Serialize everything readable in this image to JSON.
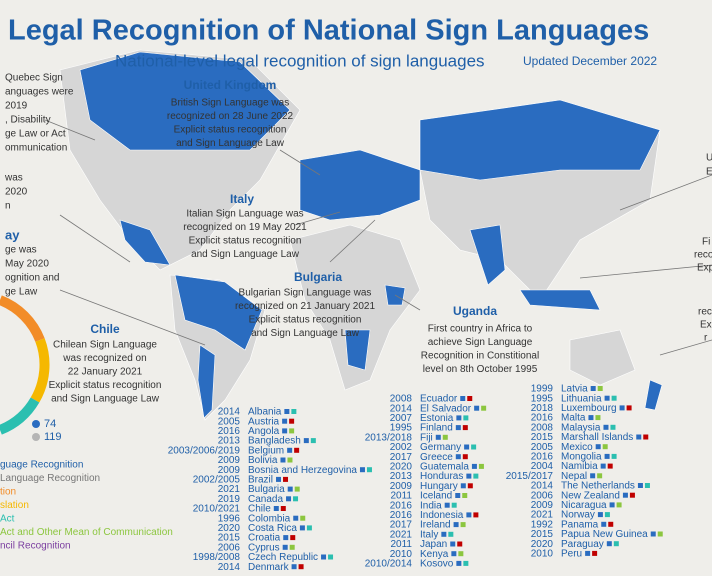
{
  "header": {
    "title": "Legal Recognition of National Sign Languages",
    "subtitle": "National-level legal recognition of sign languages",
    "updated": "Updated December 2022"
  },
  "callouts": [
    {
      "heading": "United Kingdom",
      "lines": [
        "British Sign Language was",
        "recognized on 28 June 2022",
        "Explicit status recognition",
        "and Sign Language Law"
      ]
    },
    {
      "heading": "Italy",
      "lines": [
        "Italian Sign Language was",
        "recognized on 19 May 2021",
        "Explicit status recognition",
        "and Sign Language Law"
      ]
    },
    {
      "heading": "Bulgaria",
      "lines": [
        "Bulgarian Sign Language was",
        "recognized on 21 January 2021",
        "Explicit status recognition",
        "and Sign Language Law"
      ]
    },
    {
      "heading": "Uganda",
      "lines": [
        "First country in Africa to",
        "achieve Sign Language",
        "Recognition in Constitional",
        "level on 8th October 1995"
      ]
    },
    {
      "heading": "Chile",
      "lines": [
        "Chilean Sign Language",
        "was recognized on",
        "22 January 2021",
        "Explicit status recognition",
        "and Sign Language Law"
      ]
    }
  ],
  "left_fragments": [
    "Quebec Sign",
    "anguages were",
    "2019",
    ", Disability",
    "ge Law or Act",
    "ommunication",
    "was",
    "2020",
    "n",
    "ay",
    "ge was",
    "May 2020",
    "ognition and",
    "ge Law"
  ],
  "right_fragments": [
    "U",
    "E",
    "Fi",
    "reco",
    "Exp",
    "rec",
    "Ex",
    "r"
  ],
  "legend": {
    "counts": [
      "74",
      "119"
    ],
    "items": [
      "guage Recognition",
      "Language Recognition",
      "tion",
      "slation",
      "Act",
      "Act and Other Mean of Communication",
      "ncil Recognition"
    ]
  },
  "country_columns": [
    [
      [
        "2014",
        "Albania"
      ],
      [
        "2005",
        "Austria"
      ],
      [
        "2016",
        "Angola"
      ],
      [
        "2013",
        "Bangladesh"
      ],
      [
        "2003/2006/2019",
        "Belgium"
      ],
      [
        "2009",
        "Bolivia"
      ],
      [
        "2009",
        "Bosnia and Herzegovina"
      ],
      [
        "2002/2005",
        "Brazil"
      ],
      [
        "2021",
        "Bulgaria"
      ],
      [
        "2019",
        "Canada"
      ],
      [
        "2010/2021",
        "Chile"
      ],
      [
        "1996",
        "Colombia"
      ],
      [
        "2020",
        "Costa Rica"
      ],
      [
        "2015",
        "Croatia"
      ],
      [
        "2006",
        "Cyprus"
      ],
      [
        "1998/2008",
        "Czech Republic"
      ],
      [
        "2014",
        "Denmark"
      ]
    ],
    [
      [
        "2008",
        "Ecuador"
      ],
      [
        "2014",
        "El Salvador"
      ],
      [
        "2007",
        "Estonia"
      ],
      [
        "1995",
        "Finland"
      ],
      [
        "2013/2018",
        "Fiji"
      ],
      [
        "2002",
        "Germany"
      ],
      [
        "2017",
        "Greece"
      ],
      [
        "2020",
        "Guatemala"
      ],
      [
        "2013",
        "Honduras"
      ],
      [
        "2009",
        "Hungary"
      ],
      [
        "2011",
        "Iceland"
      ],
      [
        "2016",
        "India"
      ],
      [
        "2016",
        "Indonesia"
      ],
      [
        "2017",
        "Ireland"
      ],
      [
        "2021",
        "Italy"
      ],
      [
        "2011",
        "Japan"
      ],
      [
        "2010",
        "Kenya"
      ],
      [
        "2010/2014",
        "Kosovo"
      ]
    ],
    [
      [
        "1999",
        "Latvia"
      ],
      [
        "1995",
        "Lithuania"
      ],
      [
        "2018",
        "Luxembourg"
      ],
      [
        "2016",
        "Malta"
      ],
      [
        "2008",
        "Malaysia"
      ],
      [
        "2015",
        "Marshall Islands"
      ],
      [
        "2005",
        "Mexico"
      ],
      [
        "2016",
        "Mongolia"
      ],
      [
        "2004",
        "Namibia"
      ],
      [
        "2015/2017",
        "Nepal"
      ],
      [
        "2014",
        "The Netherlands"
      ],
      [
        "2006",
        "New Zealand"
      ],
      [
        "2009",
        "Nicaragua"
      ],
      [
        "2021",
        "Norway"
      ],
      [
        "1992",
        "Panama"
      ],
      [
        "2015",
        "Papua New Guinea"
      ],
      [
        "2020",
        "Paraguay"
      ],
      [
        "2010",
        "Peru"
      ]
    ]
  ]
}
